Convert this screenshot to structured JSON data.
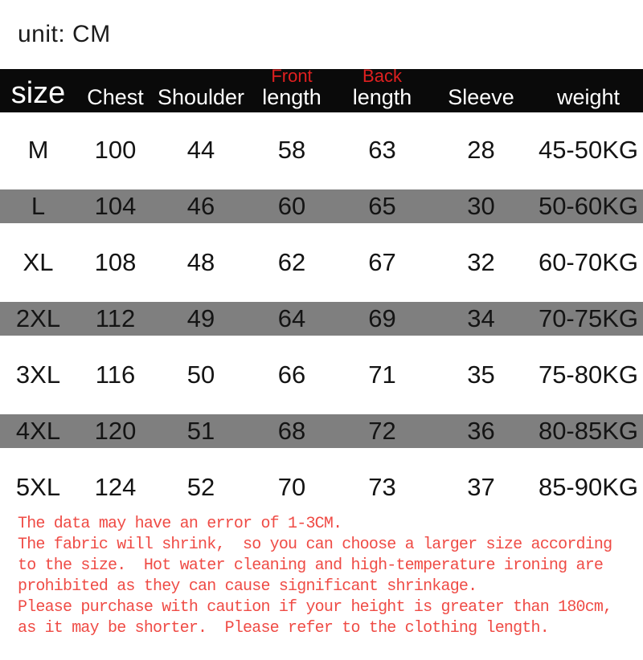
{
  "unit_label": "unit: CM",
  "colors": {
    "header_bg": "#0a0a0a",
    "header_text": "#ffffff",
    "accent_red": "#e02020",
    "note_red": "#ef4b45",
    "row_shade_gray": "#7f7f7f",
    "body_text": "#141414"
  },
  "header": {
    "columns": [
      {
        "id": "size",
        "label": "size"
      },
      {
        "id": "chest",
        "label": "Chest"
      },
      {
        "id": "shoulder",
        "label": "Shoulder"
      },
      {
        "id": "front-length",
        "top": "Front",
        "label": "length"
      },
      {
        "id": "back-length",
        "top": "Back",
        "label": "length"
      },
      {
        "id": "sleeve",
        "label": "Sleeve"
      },
      {
        "id": "weight",
        "label": "weight"
      }
    ]
  },
  "chart_data": {
    "type": "table",
    "title": "Garment size chart (unit: CM)",
    "columns": [
      "size",
      "Chest",
      "Shoulder",
      "Front length",
      "Back length",
      "Sleeve",
      "weight"
    ],
    "rows": [
      [
        "M",
        "100",
        "44",
        "58",
        "63",
        "28",
        "45-50KG"
      ],
      [
        "L",
        "104",
        "46",
        "60",
        "65",
        "30",
        "50-60KG"
      ],
      [
        "XL",
        "108",
        "48",
        "62",
        "67",
        "32",
        "60-70KG"
      ],
      [
        "2XL",
        "112",
        "49",
        "64",
        "69",
        "34",
        "70-75KG"
      ],
      [
        "3XL",
        "116",
        "50",
        "66",
        "71",
        "35",
        "75-80KG"
      ],
      [
        "4XL",
        "120",
        "51",
        "68",
        "72",
        "36",
        "80-85KG"
      ],
      [
        "5XL",
        "124",
        "52",
        "70",
        "73",
        "37",
        "85-90KG"
      ]
    ],
    "shaded_rows": [
      1,
      3,
      5
    ]
  },
  "notes": {
    "lines": [
      "The data may have an error of 1-3CM.",
      "The fabric will shrink,  so you can choose a larger size according",
      "to the size.  Hot water cleaning and high-temperature ironing are",
      "prohibited as they can cause significant shrinkage.",
      "Please purchase with caution if your height is greater than 180cm,",
      "as it may be shorter.  Please refer to the clothing length."
    ]
  }
}
